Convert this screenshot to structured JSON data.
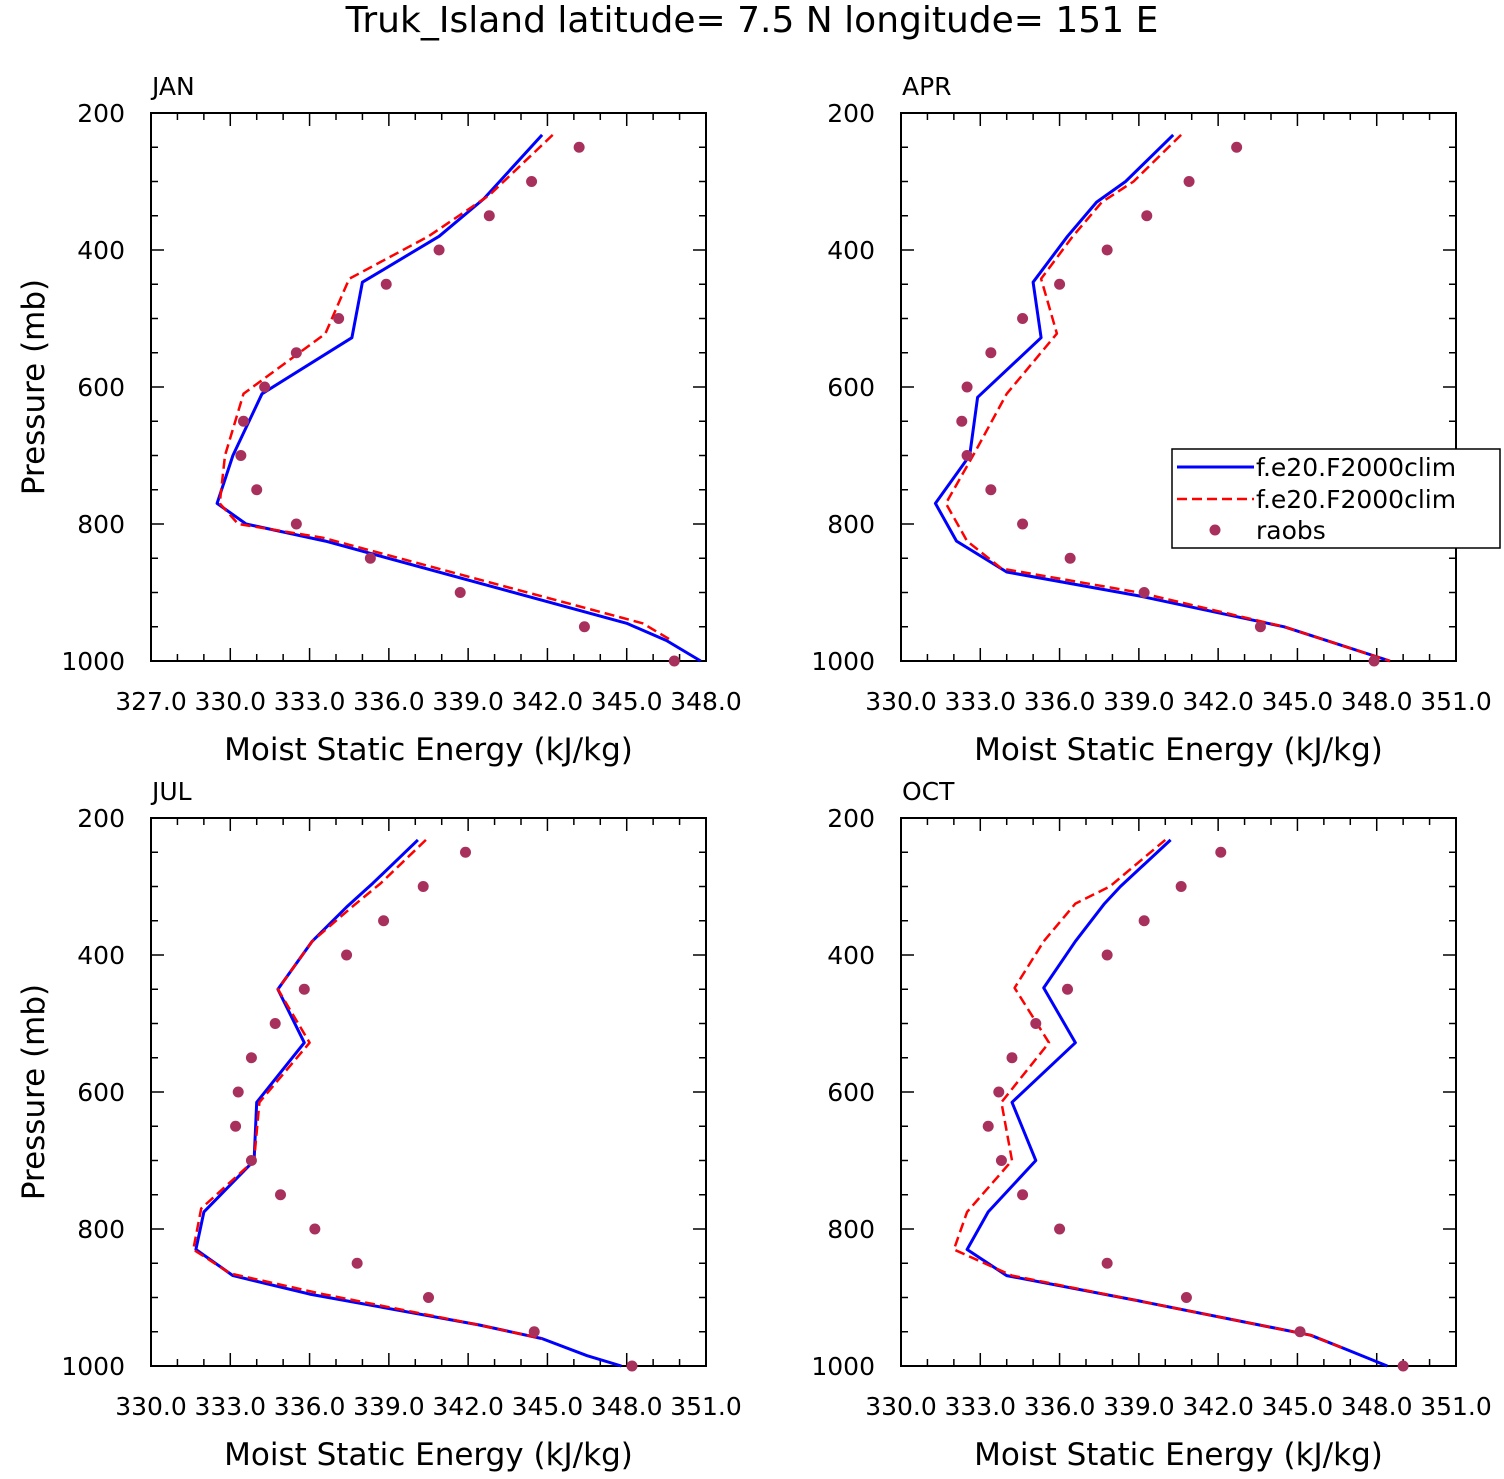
{
  "title": "Truk_Island  latitude= 7.5 N longitude= 151 E",
  "colors": {
    "model1": "#0000ff",
    "model2": "#ff0000",
    "raobs": "#a8305c",
    "axis": "#000000"
  },
  "legend": {
    "entries": [
      {
        "label": "f.e20.F2000clim",
        "style": "solid",
        "color": "#0000ff"
      },
      {
        "label": "f.e20.F2000clim",
        "style": "dashed",
        "color": "#ff0000"
      },
      {
        "label": "raobs",
        "style": "marker",
        "color": "#a8305c"
      }
    ],
    "placement": "right of APR panel"
  },
  "chart_data": [
    {
      "type": "line",
      "panel": "JAN",
      "xlabel": "Moist Static Energy (kJ/kg)",
      "ylabel": "Pressure (mb)",
      "xlim": [
        327.0,
        348.0
      ],
      "xticks": [
        "327.0",
        "330.0",
        "333.0",
        "336.0",
        "339.0",
        "342.0",
        "345.0",
        "348.0"
      ],
      "ylim": [
        200,
        1000
      ],
      "yticks": [
        "200",
        "400",
        "600",
        "800",
        "1000"
      ],
      "series": [
        {
          "name": "f.e20.F2000clim",
          "style": "solid",
          "color": "#0000ff",
          "x": [
            341.8,
            339.6,
            337.9,
            335.0,
            334.6,
            331.2,
            330.1,
            329.5,
            330.6,
            333.6,
            345.0,
            346.5,
            347.8
          ],
          "y": [
            232,
            325,
            380,
            447,
            528,
            610,
            700,
            770,
            800,
            825,
            945,
            970,
            1000
          ]
        },
        {
          "name": "f.e20.F2000clim",
          "style": "dashed",
          "color": "#ff0000",
          "x": [
            342.2,
            339.8,
            337.5,
            334.5,
            333.6,
            330.5,
            329.8,
            329.6,
            330.3,
            333.5,
            345.6,
            346.7
          ],
          "y": [
            232,
            320,
            380,
            442,
            522,
            610,
            700,
            770,
            800,
            820,
            945,
            970
          ]
        }
      ],
      "points": {
        "name": "raobs",
        "color": "#a8305c",
        "x": [
          343.2,
          341.4,
          339.8,
          337.9,
          335.9,
          334.1,
          332.5,
          331.3,
          330.5,
          330.4,
          331.0,
          332.5,
          335.3,
          338.7,
          343.4,
          346.8
        ],
        "y": [
          250,
          300,
          350,
          400,
          450,
          500,
          550,
          600,
          650,
          700,
          750,
          800,
          850,
          900,
          950,
          1000
        ]
      }
    },
    {
      "type": "line",
      "panel": "APR",
      "xlabel": "Moist Static Energy (kJ/kg)",
      "ylabel": "",
      "xlim": [
        330.0,
        351.0
      ],
      "xticks": [
        "330.0",
        "333.0",
        "336.0",
        "339.0",
        "342.0",
        "345.0",
        "348.0",
        "351.0"
      ],
      "ylim": [
        200,
        1000
      ],
      "yticks": [
        "200",
        "400",
        "600",
        "800",
        "1000"
      ],
      "series": [
        {
          "name": "f.e20.F2000clim",
          "style": "solid",
          "color": "#0000ff",
          "x": [
            340.3,
            338.5,
            337.4,
            336.3,
            335.0,
            335.3,
            332.9,
            332.6,
            331.3,
            332.1,
            334.0,
            339.0,
            344.5,
            348.5
          ],
          "y": [
            232,
            300,
            330,
            380,
            447,
            528,
            615,
            700,
            770,
            825,
            870,
            905,
            950,
            1000
          ]
        },
        {
          "name": "f.e20.F2000clim",
          "style": "dashed",
          "color": "#ff0000",
          "x": [
            340.6,
            338.8,
            337.6,
            336.5,
            335.3,
            335.9,
            334.0,
            332.8,
            331.7,
            332.5,
            333.8,
            339.0,
            344.5,
            348.5
          ],
          "y": [
            232,
            300,
            330,
            380,
            442,
            522,
            610,
            695,
            770,
            825,
            865,
            900,
            950,
            1000
          ]
        }
      ],
      "points": {
        "name": "raobs",
        "color": "#a8305c",
        "x": [
          342.7,
          340.9,
          339.3,
          337.8,
          336.0,
          334.6,
          333.4,
          332.5,
          332.3,
          332.5,
          333.4,
          334.6,
          336.4,
          339.2,
          343.6,
          347.9
        ],
        "y": [
          250,
          300,
          350,
          400,
          450,
          500,
          550,
          600,
          650,
          700,
          750,
          800,
          850,
          900,
          950,
          1000
        ]
      }
    },
    {
      "type": "line",
      "panel": "JUL",
      "xlabel": "Moist Static Energy (kJ/kg)",
      "ylabel": "Pressure (mb)",
      "xlim": [
        330.0,
        351.0
      ],
      "xticks": [
        "330.0",
        "333.0",
        "336.0",
        "339.0",
        "342.0",
        "345.0",
        "348.0",
        "351.0"
      ],
      "ylim": [
        200,
        1000
      ],
      "yticks": [
        "200",
        "400",
        "600",
        "800",
        "1000"
      ],
      "series": [
        {
          "name": "f.e20.F2000clim",
          "style": "solid",
          "color": "#0000ff",
          "x": [
            340.1,
            338.4,
            337.4,
            336.1,
            334.8,
            335.8,
            334.0,
            333.9,
            332.0,
            331.7,
            333.1,
            336.0,
            342.4,
            344.8,
            346.5,
            347.8
          ],
          "y": [
            232,
            295,
            330,
            380,
            450,
            528,
            615,
            700,
            775,
            830,
            868,
            895,
            940,
            960,
            985,
            1000
          ]
        },
        {
          "name": "f.e20.F2000clim",
          "style": "dashed",
          "color": "#ff0000",
          "x": [
            340.4,
            338.7,
            337.6,
            336.1,
            334.8,
            336.0,
            334.1,
            333.9,
            331.9,
            331.6,
            333.0,
            336.5,
            342.4,
            344.8
          ],
          "y": [
            232,
            295,
            330,
            380,
            450,
            528,
            615,
            700,
            770,
            830,
            865,
            895,
            940,
            960
          ]
        }
      ],
      "points": {
        "name": "raobs",
        "color": "#a8305c",
        "x": [
          341.9,
          340.3,
          338.8,
          337.4,
          335.8,
          334.7,
          333.8,
          333.3,
          333.2,
          333.8,
          334.9,
          336.2,
          337.8,
          340.5,
          344.5,
          348.2
        ],
        "y": [
          250,
          300,
          350,
          400,
          450,
          500,
          550,
          600,
          650,
          700,
          750,
          800,
          850,
          900,
          950,
          1000
        ]
      }
    },
    {
      "type": "line",
      "panel": "OCT",
      "xlabel": "Moist Static Energy (kJ/kg)",
      "ylabel": "",
      "xlim": [
        330.0,
        351.0
      ],
      "xticks": [
        "330.0",
        "333.0",
        "336.0",
        "339.0",
        "342.0",
        "345.0",
        "348.0",
        "351.0"
      ],
      "ylim": [
        200,
        1000
      ],
      "yticks": [
        "200",
        "400",
        "600",
        "800",
        "1000"
      ],
      "series": [
        {
          "name": "f.e20.F2000clim",
          "style": "solid",
          "color": "#0000ff",
          "x": [
            340.2,
            338.3,
            337.7,
            336.6,
            335.4,
            336.6,
            334.2,
            335.1,
            333.3,
            332.5,
            334.0,
            339.0,
            345.5,
            346.8,
            348.4
          ],
          "y": [
            232,
            300,
            325,
            380,
            448,
            528,
            615,
            700,
            775,
            830,
            868,
            905,
            955,
            975,
            1000
          ]
        },
        {
          "name": "f.e20.F2000clim",
          "style": "dashed",
          "color": "#ff0000",
          "x": [
            340.0,
            337.9,
            336.6,
            335.4,
            334.3,
            335.6,
            333.8,
            334.2,
            332.5,
            332.0,
            334.2,
            339.0,
            345.5,
            346.8
          ],
          "y": [
            232,
            300,
            325,
            380,
            448,
            528,
            615,
            700,
            775,
            830,
            868,
            905,
            955,
            975
          ]
        }
      ],
      "points": {
        "name": "raobs",
        "color": "#a8305c",
        "x": [
          342.1,
          340.6,
          339.2,
          337.8,
          336.3,
          335.1,
          334.2,
          333.7,
          333.3,
          333.8,
          334.6,
          336.0,
          337.8,
          340.8,
          345.1,
          349.0
        ],
        "y": [
          250,
          300,
          350,
          400,
          450,
          500,
          550,
          600,
          650,
          700,
          750,
          800,
          850,
          900,
          950,
          1000
        ]
      }
    }
  ]
}
